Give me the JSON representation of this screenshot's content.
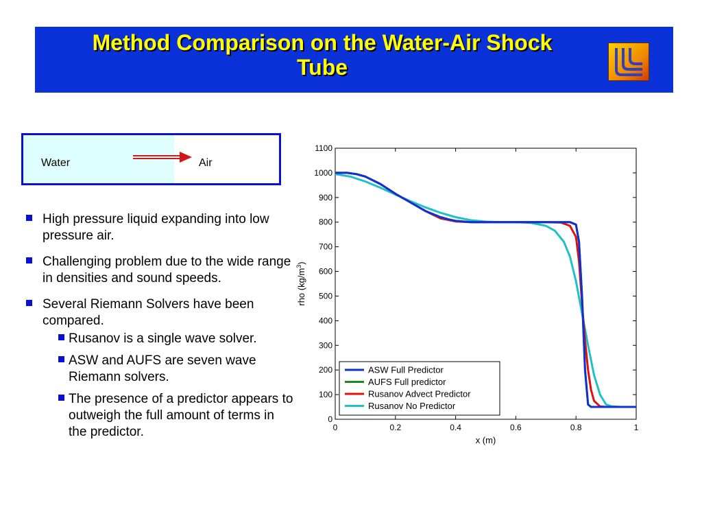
{
  "slide": {
    "title_line1": "Method Comparison on the Water-Air Shock",
    "title_line2": "Tube"
  },
  "diagram": {
    "left_label": "Water",
    "right_label": "Air"
  },
  "bullets": [
    {
      "text": "High pressure liquid expanding into low pressure air.",
      "sub": []
    },
    {
      "text": "Challenging problem due to the wide range in densities and sound speeds.",
      "sub": []
    },
    {
      "text": "Several Riemann Solvers have been compared.",
      "sub": [
        "Rusanov is a single wave solver.",
        "ASW and AUFS are seven wave Riemann solvers.",
        "The presence of a predictor appears to outweigh the full amount of terms in the predictor."
      ]
    }
  ],
  "chart_data": {
    "type": "line",
    "title": "",
    "xlabel": "x (m)",
    "ylabel": "rho (kg/m",
    "ylabel_sup": "3",
    "ylabel_close": ")",
    "xlim": [
      0,
      1
    ],
    "ylim": [
      0,
      1100
    ],
    "xticks": [
      0,
      0.2,
      0.4,
      0.6,
      0.8,
      1
    ],
    "xtick_labels": [
      "0",
      "0.2",
      "0.4",
      "0.6",
      "0.8",
      "1"
    ],
    "yticks": [
      0,
      100,
      200,
      300,
      400,
      500,
      600,
      700,
      800,
      900,
      1000,
      1100
    ],
    "legend_position": "bottom-left",
    "series": [
      {
        "name": "ASW Full Predictor",
        "color": "#1030d0",
        "x": [
          0,
          0.04,
          0.07,
          0.1,
          0.15,
          0.2,
          0.25,
          0.3,
          0.35,
          0.38,
          0.4,
          0.45,
          0.5,
          0.6,
          0.7,
          0.78,
          0.8,
          0.81,
          0.82,
          0.83,
          0.84,
          0.85,
          0.9,
          1
        ],
        "y": [
          1000,
          1000,
          995,
          985,
          955,
          915,
          880,
          845,
          820,
          810,
          805,
          800,
          800,
          800,
          800,
          800,
          790,
          720,
          500,
          200,
          60,
          50,
          50,
          50
        ]
      },
      {
        "name": "AUFS Full predictor",
        "color": "#1a8a1a",
        "x": [
          0,
          0.04,
          0.07,
          0.1,
          0.15,
          0.2,
          0.25,
          0.3,
          0.35,
          0.38,
          0.4,
          0.45,
          0.5,
          0.6,
          0.7,
          0.78,
          0.8,
          0.81,
          0.82,
          0.83,
          0.84,
          0.85,
          0.9,
          1
        ],
        "y": [
          1000,
          1000,
          995,
          985,
          955,
          915,
          880,
          845,
          820,
          810,
          805,
          800,
          800,
          800,
          800,
          800,
          790,
          720,
          500,
          200,
          60,
          50,
          50,
          50
        ]
      },
      {
        "name": "Rusanov Advect Predictor",
        "color": "#e01010",
        "x": [
          0,
          0.04,
          0.07,
          0.1,
          0.15,
          0.2,
          0.25,
          0.3,
          0.35,
          0.4,
          0.45,
          0.5,
          0.6,
          0.7,
          0.75,
          0.78,
          0.8,
          0.81,
          0.82,
          0.83,
          0.84,
          0.85,
          0.86,
          0.88,
          0.9,
          1
        ],
        "y": [
          1000,
          1000,
          995,
          985,
          955,
          915,
          880,
          845,
          815,
          803,
          800,
          800,
          800,
          800,
          798,
          785,
          740,
          640,
          470,
          320,
          200,
          120,
          75,
          52,
          50,
          50
        ]
      },
      {
        "name": "Rusanov No Predictor",
        "color": "#20c0c8",
        "x": [
          0,
          0.05,
          0.1,
          0.15,
          0.2,
          0.25,
          0.3,
          0.35,
          0.4,
          0.45,
          0.5,
          0.55,
          0.6,
          0.65,
          0.7,
          0.73,
          0.76,
          0.78,
          0.8,
          0.82,
          0.84,
          0.86,
          0.88,
          0.9,
          0.92,
          0.95,
          1
        ],
        "y": [
          995,
          985,
          965,
          940,
          912,
          885,
          860,
          838,
          820,
          808,
          802,
          800,
          800,
          797,
          785,
          765,
          720,
          660,
          560,
          430,
          300,
          180,
          100,
          60,
          52,
          50,
          50
        ]
      }
    ]
  }
}
